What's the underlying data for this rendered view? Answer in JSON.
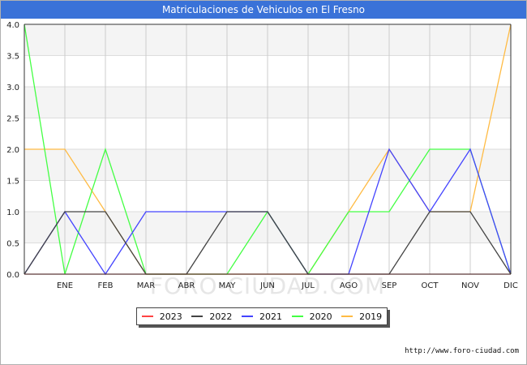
{
  "chart_data": {
    "type": "line",
    "title": "Matriculaciones de Vehiculos en El Fresno",
    "x": [
      "",
      "ENE",
      "FEB",
      "MAR",
      "ABR",
      "MAY",
      "JUN",
      "JUL",
      "AGO",
      "SEP",
      "OCT",
      "NOV",
      "DIC"
    ],
    "y_ticks": [
      "0.0",
      "0.5",
      "1.0",
      "1.5",
      "2.0",
      "2.5",
      "3.0",
      "3.5",
      "4.0"
    ],
    "ylim": [
      0,
      4
    ],
    "grid": true,
    "legend": "bottom-center",
    "series": [
      {
        "name": "2023",
        "color": "#ff4444",
        "values": [
          0,
          0,
          0,
          0,
          0,
          0,
          0,
          0,
          0,
          0,
          0,
          0,
          0
        ]
      },
      {
        "name": "2022",
        "color": "#444444",
        "values": [
          0,
          1,
          1,
          0,
          0,
          1,
          1,
          0,
          0,
          0,
          1,
          1,
          0
        ]
      },
      {
        "name": "2021",
        "color": "#4444ff",
        "values": [
          0,
          1,
          0,
          1,
          1,
          1,
          1,
          0,
          0,
          2,
          1,
          2,
          0
        ]
      },
      {
        "name": "2020",
        "color": "#44ff44",
        "values": [
          4,
          0,
          2,
          0,
          0,
          0,
          1,
          0,
          1,
          1,
          2,
          2,
          0
        ]
      },
      {
        "name": "2019",
        "color": "#ffbb44",
        "values": [
          2,
          2,
          1,
          0,
          0,
          0,
          0,
          0,
          1,
          2,
          1,
          1,
          4
        ]
      }
    ]
  },
  "watermark": "FORO-CIUDAD.COM",
  "source": "http://www.foro-ciudad.com"
}
